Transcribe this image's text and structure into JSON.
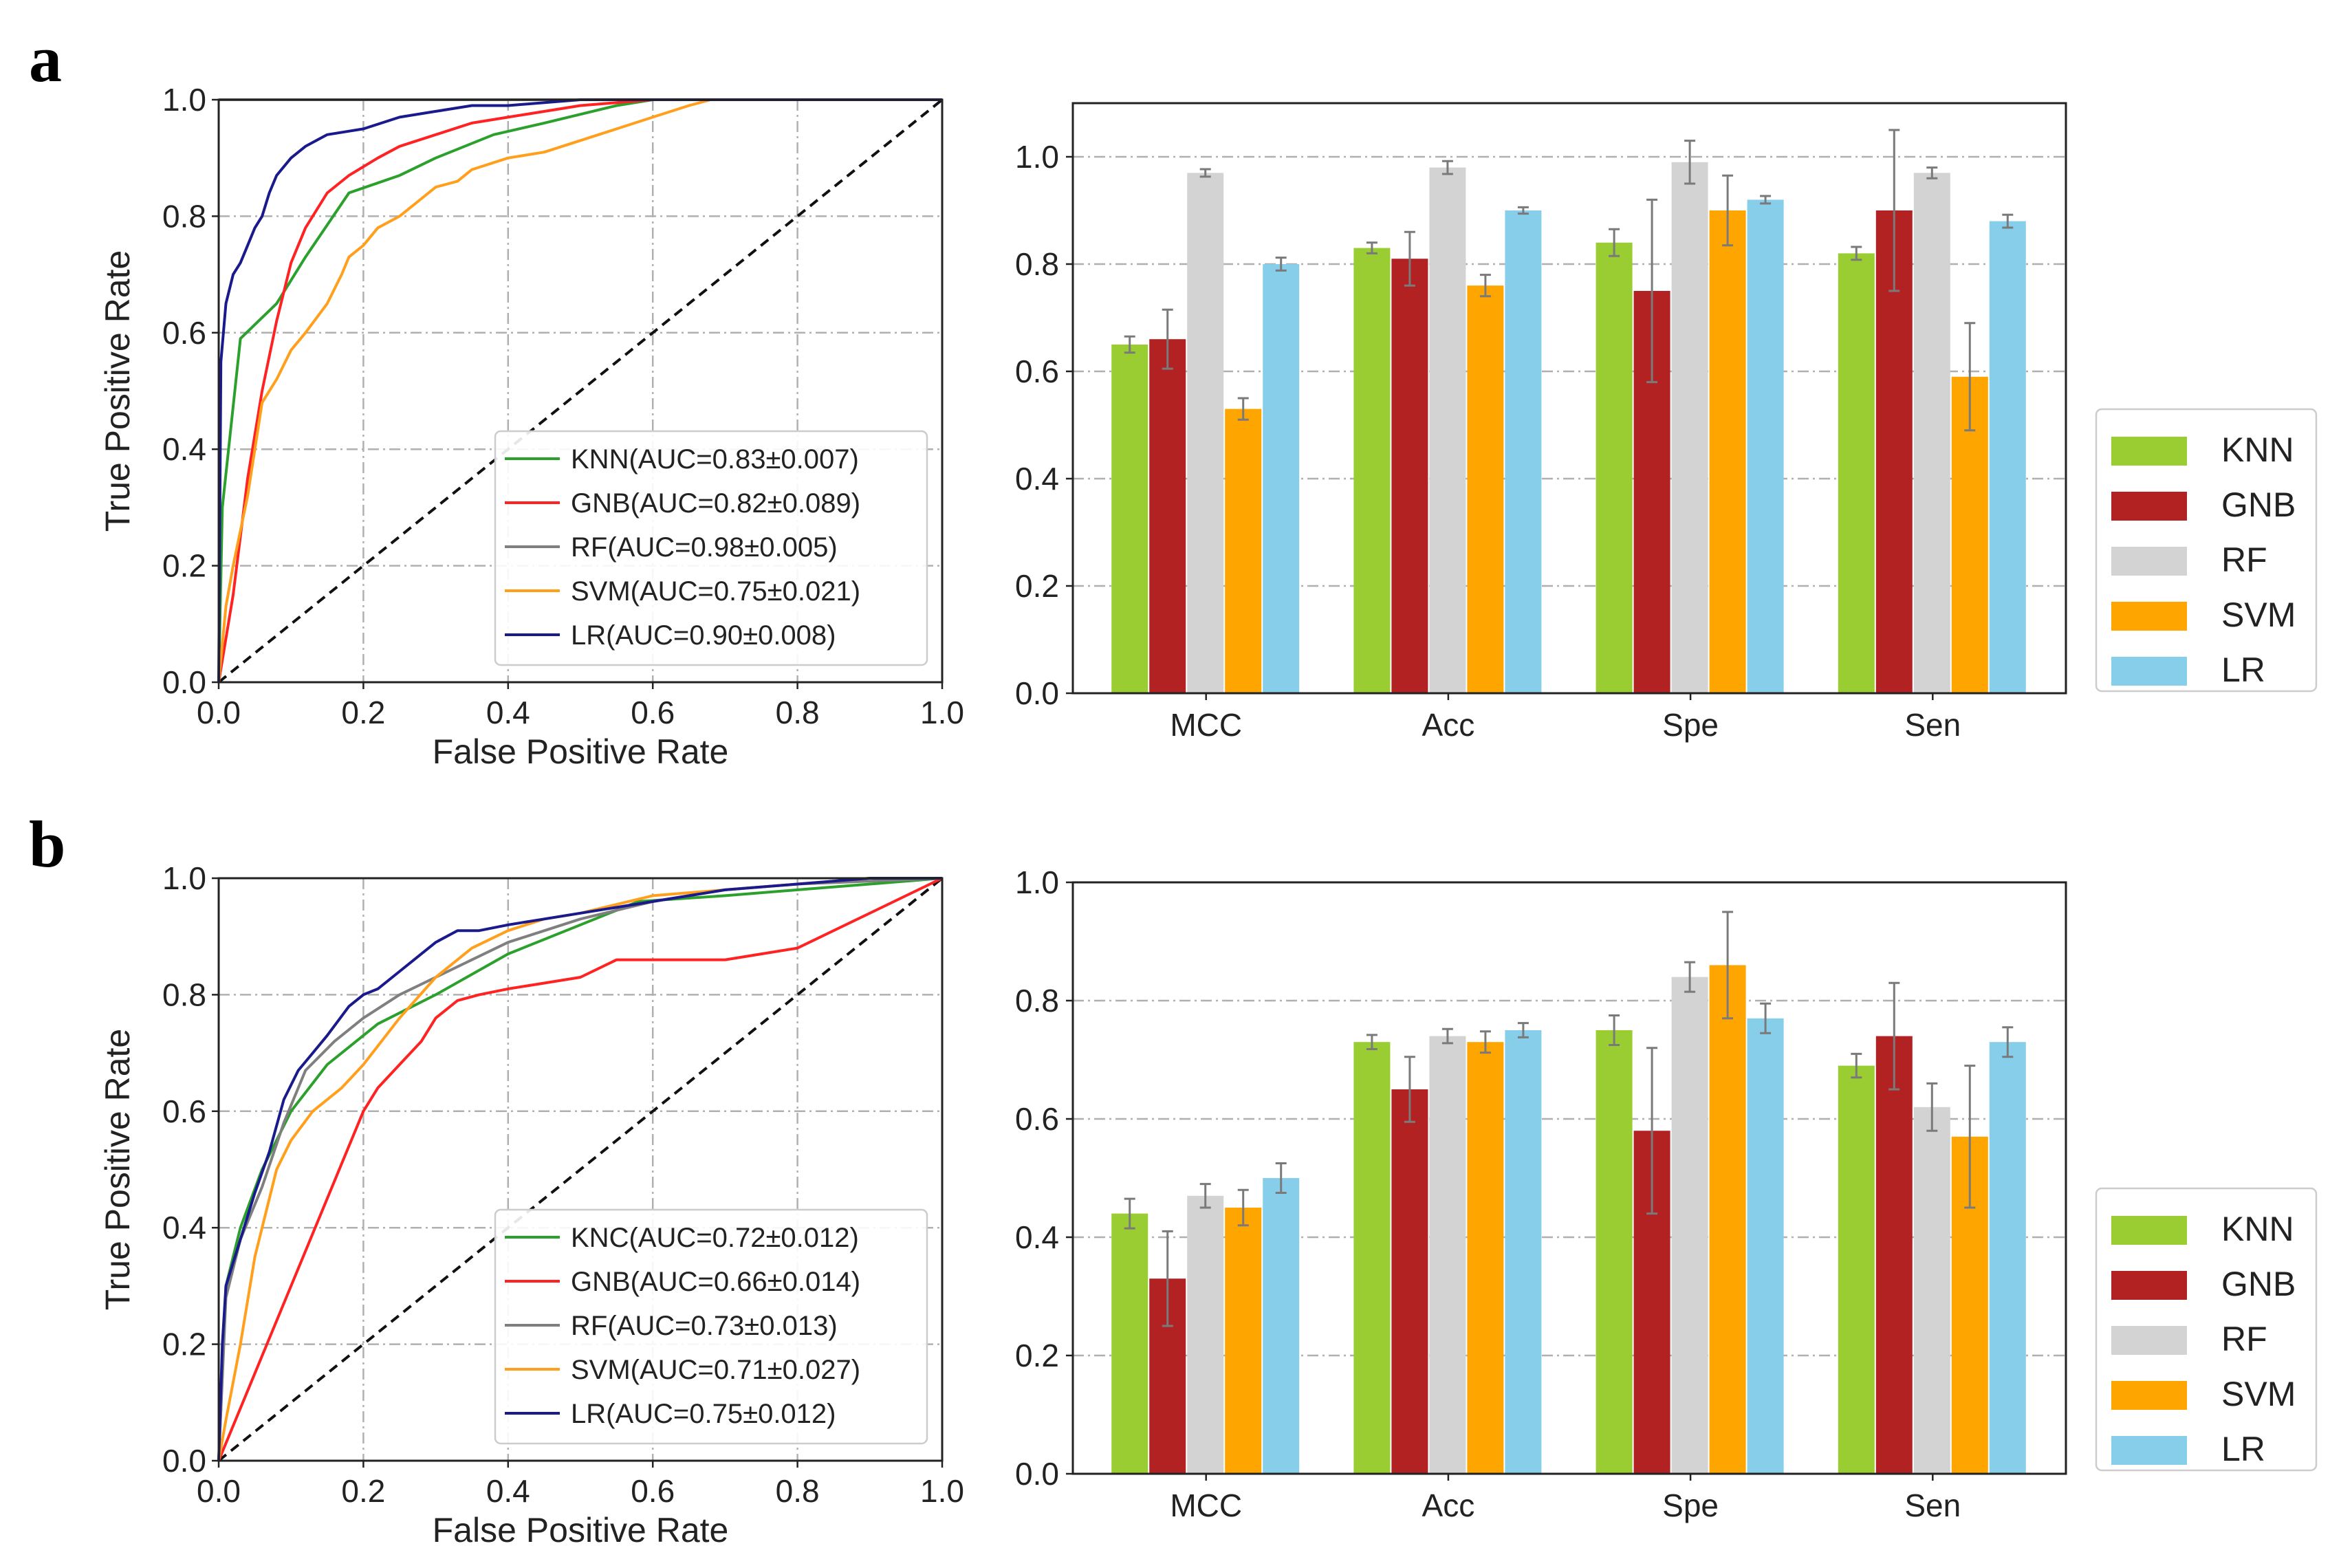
{
  "panels": [
    {
      "label": "a"
    },
    {
      "label": "b"
    }
  ],
  "chart_data": [
    {
      "id": "roc-a",
      "type": "line",
      "title": "",
      "xlabel": "False Positive Rate",
      "ylabel": "True Positive Rate",
      "xlim": [
        0,
        1
      ],
      "ylim": [
        0,
        1
      ],
      "xticks": [
        "0.0",
        "0.2",
        "0.4",
        "0.6",
        "0.8",
        "1.0"
      ],
      "yticks": [
        "0.0",
        "0.2",
        "0.4",
        "0.6",
        "0.8",
        "1.0"
      ],
      "grid": true,
      "legend_position": "bottom-right",
      "diagonal": true,
      "series": [
        {
          "name": "KNN(AUC=0.83±0.007)",
          "color": "#2ca02c",
          "x": [
            0,
            0.005,
            0.03,
            0.08,
            0.12,
            0.18,
            0.25,
            0.3,
            0.38,
            0.45,
            0.55,
            0.6,
            0.62,
            0.7,
            1.0
          ],
          "y": [
            0,
            0.3,
            0.59,
            0.65,
            0.73,
            0.84,
            0.87,
            0.9,
            0.94,
            0.96,
            0.99,
            1.0,
            1.0,
            1.0,
            1.0
          ]
        },
        {
          "name": "GNB(AUC=0.82±0.089)",
          "color": "#ff2222",
          "x": [
            0,
            0.02,
            0.04,
            0.06,
            0.08,
            0.1,
            0.12,
            0.15,
            0.18,
            0.22,
            0.25,
            0.3,
            0.35,
            0.4,
            0.5,
            0.6,
            0.65,
            1.0
          ],
          "y": [
            0,
            0.15,
            0.35,
            0.5,
            0.62,
            0.72,
            0.78,
            0.84,
            0.87,
            0.9,
            0.92,
            0.94,
            0.96,
            0.97,
            0.99,
            1.0,
            1.0,
            1.0
          ]
        },
        {
          "name": "RF(AUC=0.98±0.005)",
          "color": "#7f7f7f",
          "x": [
            0,
            1
          ],
          "y": [
            1,
            1
          ]
        },
        {
          "name": "SVM(AUC=0.75±0.021)",
          "color": "#ff9f1c",
          "x": [
            0,
            0.01,
            0.02,
            0.04,
            0.05,
            0.06,
            0.08,
            0.1,
            0.12,
            0.15,
            0.17,
            0.18,
            0.2,
            0.22,
            0.25,
            0.28,
            0.3,
            0.33,
            0.35,
            0.4,
            0.45,
            0.5,
            0.55,
            0.6,
            0.65,
            0.68,
            1.0
          ],
          "y": [
            0,
            0.13,
            0.2,
            0.32,
            0.4,
            0.48,
            0.52,
            0.57,
            0.6,
            0.65,
            0.7,
            0.73,
            0.75,
            0.78,
            0.8,
            0.83,
            0.85,
            0.86,
            0.88,
            0.9,
            0.91,
            0.93,
            0.95,
            0.97,
            0.99,
            1.0,
            1.0
          ]
        },
        {
          "name": "LR(AUC=0.90±0.008)",
          "color": "#1a1a8c",
          "x": [
            0,
            0.003,
            0.01,
            0.02,
            0.03,
            0.04,
            0.05,
            0.06,
            0.07,
            0.08,
            0.1,
            0.12,
            0.15,
            0.2,
            0.25,
            0.3,
            0.35,
            0.4,
            0.5,
            0.6,
            0.7,
            0.8,
            0.9,
            0.95,
            1.0
          ],
          "y": [
            0,
            0.55,
            0.65,
            0.7,
            0.72,
            0.75,
            0.78,
            0.8,
            0.84,
            0.87,
            0.9,
            0.92,
            0.94,
            0.95,
            0.97,
            0.98,
            0.99,
            0.99,
            1.0,
            1.0,
            1.0,
            1.0,
            1.0,
            1.0,
            1.0
          ]
        }
      ]
    },
    {
      "id": "bar-a",
      "type": "bar",
      "title": "",
      "xlabel": "",
      "ylabel": "",
      "ylim": [
        0,
        1.1
      ],
      "yticks": [
        "0.0",
        "0.2",
        "0.4",
        "0.6",
        "0.8",
        "1.0"
      ],
      "grid": true,
      "legend_position": "right",
      "categories": [
        "MCC",
        "Acc",
        "Spe",
        "Sen"
      ],
      "series": [
        {
          "name": "KNN",
          "color": "#9acd32",
          "values": [
            0.65,
            0.83,
            0.84,
            0.82
          ],
          "errors": [
            0.015,
            0.01,
            0.025,
            0.012
          ]
        },
        {
          "name": "GNB",
          "color": "#b22222",
          "values": [
            0.66,
            0.81,
            0.75,
            0.9
          ],
          "errors": [
            0.055,
            0.05,
            0.17,
            0.15
          ]
        },
        {
          "name": "RF",
          "color": "#d3d3d3",
          "values": [
            0.97,
            0.98,
            0.99,
            0.97
          ],
          "errors": [
            0.007,
            0.012,
            0.04,
            0.01
          ]
        },
        {
          "name": "SVM",
          "color": "#ffa500",
          "values": [
            0.53,
            0.76,
            0.9,
            0.59
          ],
          "errors": [
            0.02,
            0.02,
            0.065,
            0.1
          ]
        },
        {
          "name": "LR",
          "color": "#87ceeb",
          "values": [
            0.8,
            0.9,
            0.92,
            0.88
          ],
          "errors": [
            0.012,
            0.006,
            0.007,
            0.012
          ]
        }
      ]
    },
    {
      "id": "roc-b",
      "type": "line",
      "title": "",
      "xlabel": "False Positive Rate",
      "ylabel": "True Positive Rate",
      "xlim": [
        0,
        1
      ],
      "ylim": [
        0,
        1
      ],
      "xticks": [
        "0.0",
        "0.2",
        "0.4",
        "0.6",
        "0.8",
        "1.0"
      ],
      "yticks": [
        "0.0",
        "0.2",
        "0.4",
        "0.6",
        "0.8",
        "1.0"
      ],
      "grid": true,
      "legend_position": "bottom-right",
      "diagonal": true,
      "series": [
        {
          "name": "KNC(AUC=0.72±0.012)",
          "color": "#2ca02c",
          "x": [
            0,
            0.01,
            0.03,
            0.06,
            0.1,
            0.15,
            0.22,
            0.3,
            0.4,
            0.5,
            0.58,
            0.7,
            0.8,
            0.9,
            1.0
          ],
          "y": [
            0,
            0.3,
            0.4,
            0.5,
            0.6,
            0.68,
            0.75,
            0.8,
            0.87,
            0.92,
            0.96,
            0.97,
            0.98,
            0.99,
            1.0
          ]
        },
        {
          "name": "GNB(AUC=0.66±0.014)",
          "color": "#ff2222",
          "x": [
            0,
            0.2,
            0.22,
            0.25,
            0.28,
            0.3,
            0.33,
            0.36,
            0.4,
            0.45,
            0.5,
            0.55,
            0.6,
            0.65,
            0.7,
            0.75,
            0.8,
            1.0
          ],
          "y": [
            0,
            0.6,
            0.64,
            0.68,
            0.72,
            0.76,
            0.79,
            0.8,
            0.81,
            0.82,
            0.83,
            0.86,
            0.86,
            0.86,
            0.86,
            0.87,
            0.88,
            1.0
          ]
        },
        {
          "name": "RF(AUC=0.73±0.013)",
          "color": "#7f7f7f",
          "x": [
            0,
            0.01,
            0.03,
            0.06,
            0.09,
            0.12,
            0.16,
            0.2,
            0.25,
            0.3,
            0.35,
            0.4,
            0.5,
            0.6,
            0.7,
            0.8,
            1.0
          ],
          "y": [
            0,
            0.28,
            0.38,
            0.47,
            0.58,
            0.67,
            0.72,
            0.76,
            0.8,
            0.83,
            0.86,
            0.89,
            0.93,
            0.96,
            0.98,
            0.99,
            1.0
          ]
        },
        {
          "name": "SVM(AUC=0.71±0.027)",
          "color": "#ff9f1c",
          "x": [
            0,
            0.01,
            0.03,
            0.05,
            0.08,
            0.1,
            0.13,
            0.17,
            0.2,
            0.25,
            0.3,
            0.35,
            0.4,
            0.45,
            0.5,
            0.6,
            0.7,
            0.8,
            0.9,
            1.0
          ],
          "y": [
            0,
            0.07,
            0.2,
            0.35,
            0.5,
            0.55,
            0.6,
            0.64,
            0.68,
            0.76,
            0.83,
            0.88,
            0.91,
            0.93,
            0.94,
            0.97,
            0.98,
            0.99,
            1.0,
            1.0
          ]
        },
        {
          "name": "LR(AUC=0.75±0.012)",
          "color": "#1a1a8c",
          "x": [
            0,
            0.005,
            0.01,
            0.02,
            0.03,
            0.05,
            0.07,
            0.09,
            0.11,
            0.13,
            0.15,
            0.18,
            0.2,
            0.22,
            0.25,
            0.28,
            0.3,
            0.33,
            0.36,
            0.4,
            0.45,
            0.5,
            0.6,
            0.7,
            0.8,
            0.9,
            1.0
          ],
          "y": [
            0,
            0.2,
            0.3,
            0.34,
            0.38,
            0.46,
            0.53,
            0.62,
            0.67,
            0.7,
            0.73,
            0.78,
            0.8,
            0.81,
            0.84,
            0.87,
            0.89,
            0.91,
            0.91,
            0.92,
            0.93,
            0.94,
            0.96,
            0.98,
            0.99,
            1.0,
            1.0
          ]
        }
      ]
    },
    {
      "id": "bar-b",
      "type": "bar",
      "title": "",
      "xlabel": "",
      "ylabel": "",
      "ylim": [
        0,
        1.0
      ],
      "yticks": [
        "0.0",
        "0.2",
        "0.4",
        "0.6",
        "0.8",
        "1.0"
      ],
      "grid": true,
      "legend_position": "right",
      "categories": [
        "MCC",
        "Acc",
        "Spe",
        "Sen"
      ],
      "series": [
        {
          "name": "KNN",
          "color": "#9acd32",
          "values": [
            0.44,
            0.73,
            0.75,
            0.69
          ],
          "errors": [
            0.025,
            0.012,
            0.025,
            0.02
          ]
        },
        {
          "name": "GNB",
          "color": "#b22222",
          "values": [
            0.33,
            0.65,
            0.58,
            0.74
          ],
          "errors": [
            0.08,
            0.055,
            0.14,
            0.09
          ]
        },
        {
          "name": "RF",
          "color": "#d3d3d3",
          "values": [
            0.47,
            0.74,
            0.84,
            0.62
          ],
          "errors": [
            0.02,
            0.012,
            0.025,
            0.04
          ]
        },
        {
          "name": "SVM",
          "color": "#ffa500",
          "values": [
            0.45,
            0.73,
            0.86,
            0.57
          ],
          "errors": [
            0.03,
            0.018,
            0.09,
            0.12
          ]
        },
        {
          "name": "LR",
          "color": "#87ceeb",
          "values": [
            0.5,
            0.75,
            0.77,
            0.73
          ],
          "errors": [
            0.025,
            0.012,
            0.025,
            0.025
          ]
        }
      ]
    }
  ]
}
